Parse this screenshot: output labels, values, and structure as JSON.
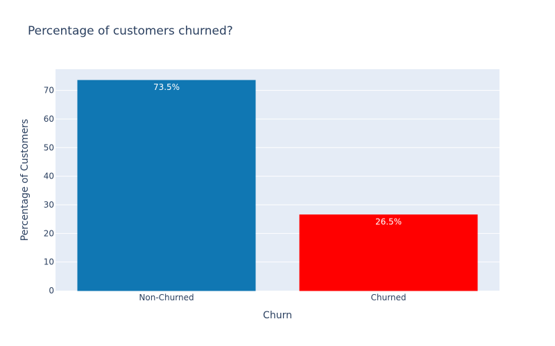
{
  "chart_data": {
    "type": "bar",
    "title": "Percentage of customers churned?",
    "xlabel": "Churn",
    "ylabel": "Percentage of Customers",
    "categories": [
      "Non-Churned",
      "Churned"
    ],
    "values": [
      73.5,
      26.5
    ],
    "data_labels": [
      "73.5%",
      "26.5%"
    ],
    "colors": [
      "#1077b3",
      "#ff0000"
    ],
    "ylim": [
      0,
      77.4
    ],
    "yticks": [
      0,
      10,
      20,
      30,
      40,
      50,
      60,
      70
    ],
    "grid": true,
    "legend": "none",
    "plot_background": "#e5ecf6",
    "grid_color": "#ffffff",
    "text_color": "#2a3f5f"
  }
}
